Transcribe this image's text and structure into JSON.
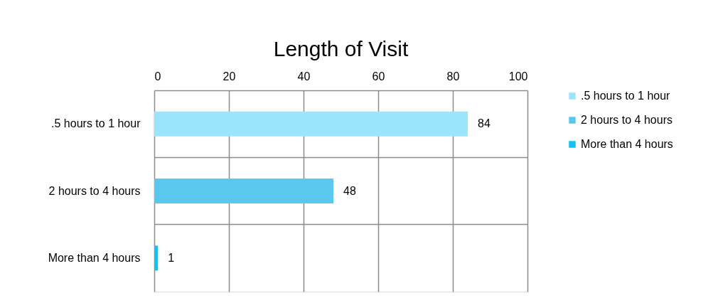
{
  "chart_data": {
    "type": "bar",
    "title": "Length of Visit",
    "orientation": "horizontal",
    "categories": [
      ".5 hours to 1 hour",
      "2 hours to 4 hours",
      "More than 4 hours"
    ],
    "series": [
      {
        "name": ".5 hours to 1 hour",
        "color": "#9be5fc",
        "values": [
          84,
          null,
          null
        ]
      },
      {
        "name": "2 hours to 4 hours",
        "color": "#5ac8ee",
        "values": [
          null,
          48,
          null
        ]
      },
      {
        "name": "More than 4 hours",
        "color": "#10c3f0",
        "values": [
          null,
          null,
          1
        ]
      }
    ],
    "xlim": [
      0,
      100
    ],
    "xticks": [
      0,
      20,
      40,
      60,
      80,
      100
    ],
    "grid": true,
    "legend": "right",
    "data_labels": true
  }
}
